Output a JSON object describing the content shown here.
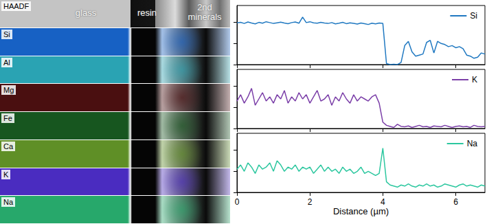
{
  "eds_maps": {
    "regions": [
      "glass",
      "resin",
      "2nd minerals"
    ],
    "panels": [
      {
        "label": "HAADF",
        "color": "#c4c4c4"
      },
      {
        "label": "Si",
        "color": "#1761c4"
      },
      {
        "label": "Al",
        "color": "#2aa3b3"
      },
      {
        "label": "Mg",
        "color": "#4a0f10"
      },
      {
        "label": "Fe",
        "color": "#17561f"
      },
      {
        "label": "Ca",
        "color": "#5f8f26"
      },
      {
        "label": "K",
        "color": "#4a2cc0"
      },
      {
        "label": "Na",
        "color": "#27a86b"
      }
    ]
  },
  "chart_data": [
    {
      "type": "line",
      "legend": "upper right",
      "grid": false,
      "tick_labels": false,
      "x": [
        0,
        0.1,
        0.2,
        0.3,
        0.4,
        0.5,
        0.6,
        0.7,
        0.8,
        0.9,
        1,
        1.1,
        1.2,
        1.3,
        1.4,
        1.5,
        1.6,
        1.7,
        1.8,
        1.9,
        2,
        2.1,
        2.2,
        2.3,
        2.4,
        2.5,
        2.6,
        2.7,
        2.8,
        2.9,
        3,
        3.1,
        3.2,
        3.3,
        3.4,
        3.5,
        3.6,
        3.7,
        3.8,
        3.9,
        4,
        4.1,
        4.2,
        4.3,
        4.4,
        4.5,
        4.6,
        4.7,
        4.8,
        4.9,
        5,
        5.1,
        5.2,
        5.3,
        5.4,
        5.5,
        5.6,
        5.7,
        5.8,
        5.9,
        6,
        6.1,
        6.2,
        6.3,
        6.4,
        6.5,
        6.6,
        6.7,
        6.8
      ],
      "xlim": [
        0,
        6.8
      ],
      "xticks": [
        0,
        2,
        4,
        6
      ],
      "ylim": [
        0,
        2.8
      ],
      "yticks": [
        0,
        1,
        2
      ],
      "series": [
        {
          "name": "Si",
          "color": "#1f78c1",
          "values": [
            1.98,
            2.0,
            1.95,
            2.02,
            1.97,
            1.93,
            2.0,
            1.96,
            2.03,
            1.99,
            1.95,
            1.98,
            2.01,
            1.97,
            1.94,
            1.99,
            2.02,
            1.96,
            2.25,
            1.99,
            2.03,
            1.98,
            1.96,
            2.0,
            1.97,
            1.95,
            1.99,
            1.93,
            1.96,
            2.0,
            1.94,
            1.98,
            1.95,
            1.92,
            1.97,
            1.94,
            1.9,
            1.96,
            1.93,
            1.97,
            1.95,
            0.05,
            0.0,
            0.02,
            0.0,
            0.1,
            0.9,
            1.1,
            0.6,
            0.4,
            0.45,
            0.5,
            1.05,
            1.15,
            0.55,
            1.1,
            1.0,
            0.95,
            0.85,
            0.9,
            0.8,
            0.85,
            0.75,
            0.45,
            0.4,
            0.3,
            0.35,
            0.55,
            0.5
          ]
        }
      ]
    },
    {
      "type": "line",
      "legend": "upper right",
      "grid": false,
      "tick_labels": false,
      "x": [
        0,
        0.1,
        0.2,
        0.3,
        0.4,
        0.5,
        0.6,
        0.7,
        0.8,
        0.9,
        1,
        1.1,
        1.2,
        1.3,
        1.4,
        1.5,
        1.6,
        1.7,
        1.8,
        1.9,
        2,
        2.1,
        2.2,
        2.3,
        2.4,
        2.5,
        2.6,
        2.7,
        2.8,
        2.9,
        3,
        3.1,
        3.2,
        3.3,
        3.4,
        3.5,
        3.6,
        3.7,
        3.8,
        3.9,
        4,
        4.1,
        4.2,
        4.3,
        4.4,
        4.5,
        4.6,
        4.7,
        4.8,
        4.9,
        5,
        5.1,
        5.2,
        5.3,
        5.4,
        5.5,
        5.6,
        5.7,
        5.8,
        5.9,
        6,
        6.1,
        6.2,
        6.3,
        6.4,
        6.5,
        6.6,
        6.7,
        6.8
      ],
      "xlim": [
        0,
        6.8
      ],
      "xticks": [
        0,
        2,
        4,
        6
      ],
      "ylim": [
        0,
        2.8
      ],
      "yticks": [
        0,
        1,
        2
      ],
      "series": [
        {
          "name": "K",
          "color": "#7b3fa8",
          "values": [
            1.3,
            1.6,
            1.2,
            1.5,
            1.9,
            1.1,
            1.4,
            1.7,
            1.3,
            1.5,
            1.2,
            1.6,
            1.4,
            1.8,
            1.2,
            1.5,
            1.3,
            1.7,
            1.4,
            1.6,
            1.2,
            1.5,
            1.8,
            1.3,
            1.4,
            1.6,
            1.1,
            1.5,
            1.3,
            1.7,
            1.4,
            1.2,
            1.6,
            1.3,
            1.5,
            1.4,
            1.3,
            1.5,
            1.6,
            1.2,
            0.3,
            0.15,
            0.1,
            0.05,
            0.2,
            0.1,
            0.08,
            0.12,
            0.05,
            0.1,
            0.15,
            0.08,
            0.1,
            0.05,
            0.12,
            0.1,
            0.08,
            0.15,
            0.1,
            0.05,
            0.1,
            0.12,
            0.08,
            0.1,
            0.05,
            0.15,
            0.1,
            0.08,
            0.1
          ]
        }
      ]
    },
    {
      "type": "line",
      "legend": "upper right",
      "grid": false,
      "tick_labels": "x",
      "xlabel": "Distance (µm)",
      "x": [
        0,
        0.1,
        0.2,
        0.3,
        0.4,
        0.5,
        0.6,
        0.7,
        0.8,
        0.9,
        1,
        1.1,
        1.2,
        1.3,
        1.4,
        1.5,
        1.6,
        1.7,
        1.8,
        1.9,
        2,
        2.1,
        2.2,
        2.3,
        2.4,
        2.5,
        2.6,
        2.7,
        2.8,
        2.9,
        3,
        3.1,
        3.2,
        3.3,
        3.4,
        3.5,
        3.6,
        3.7,
        3.8,
        3.9,
        4,
        4.1,
        4.2,
        4.3,
        4.4,
        4.5,
        4.6,
        4.7,
        4.8,
        4.9,
        5,
        5.1,
        5.2,
        5.3,
        5.4,
        5.5,
        5.6,
        5.7,
        5.8,
        5.9,
        6,
        6.1,
        6.2,
        6.3,
        6.4,
        6.5,
        6.6,
        6.7,
        6.8
      ],
      "xlim": [
        0,
        6.8
      ],
      "xticks": [
        0,
        2,
        4,
        6
      ],
      "ylim": [
        0,
        2.8
      ],
      "yticks": [
        0,
        1,
        2
      ],
      "series": [
        {
          "name": "Na",
          "color": "#2cc79f",
          "values": [
            1.1,
            1.3,
            1.0,
            1.4,
            1.2,
            0.9,
            1.3,
            1.1,
            1.2,
            1.4,
            1.0,
            1.5,
            1.3,
            1.0,
            1.2,
            1.1,
            1.3,
            1.0,
            1.2,
            1.1,
            1.2,
            0.9,
            1.1,
            1.3,
            1.0,
            1.2,
            1.0,
            1.1,
            0.9,
            1.2,
            1.0,
            1.1,
            0.9,
            1.0,
            1.2,
            0.9,
            1.0,
            0.9,
            0.8,
            0.9,
            2.1,
            0.5,
            0.35,
            0.3,
            0.25,
            0.35,
            0.3,
            0.4,
            0.3,
            0.25,
            0.35,
            0.3,
            0.4,
            0.3,
            0.35,
            0.25,
            0.3,
            0.4,
            0.35,
            0.3,
            0.25,
            0.35,
            0.4,
            0.3,
            0.35,
            0.3,
            0.25,
            0.35,
            0.3
          ]
        }
      ]
    }
  ]
}
